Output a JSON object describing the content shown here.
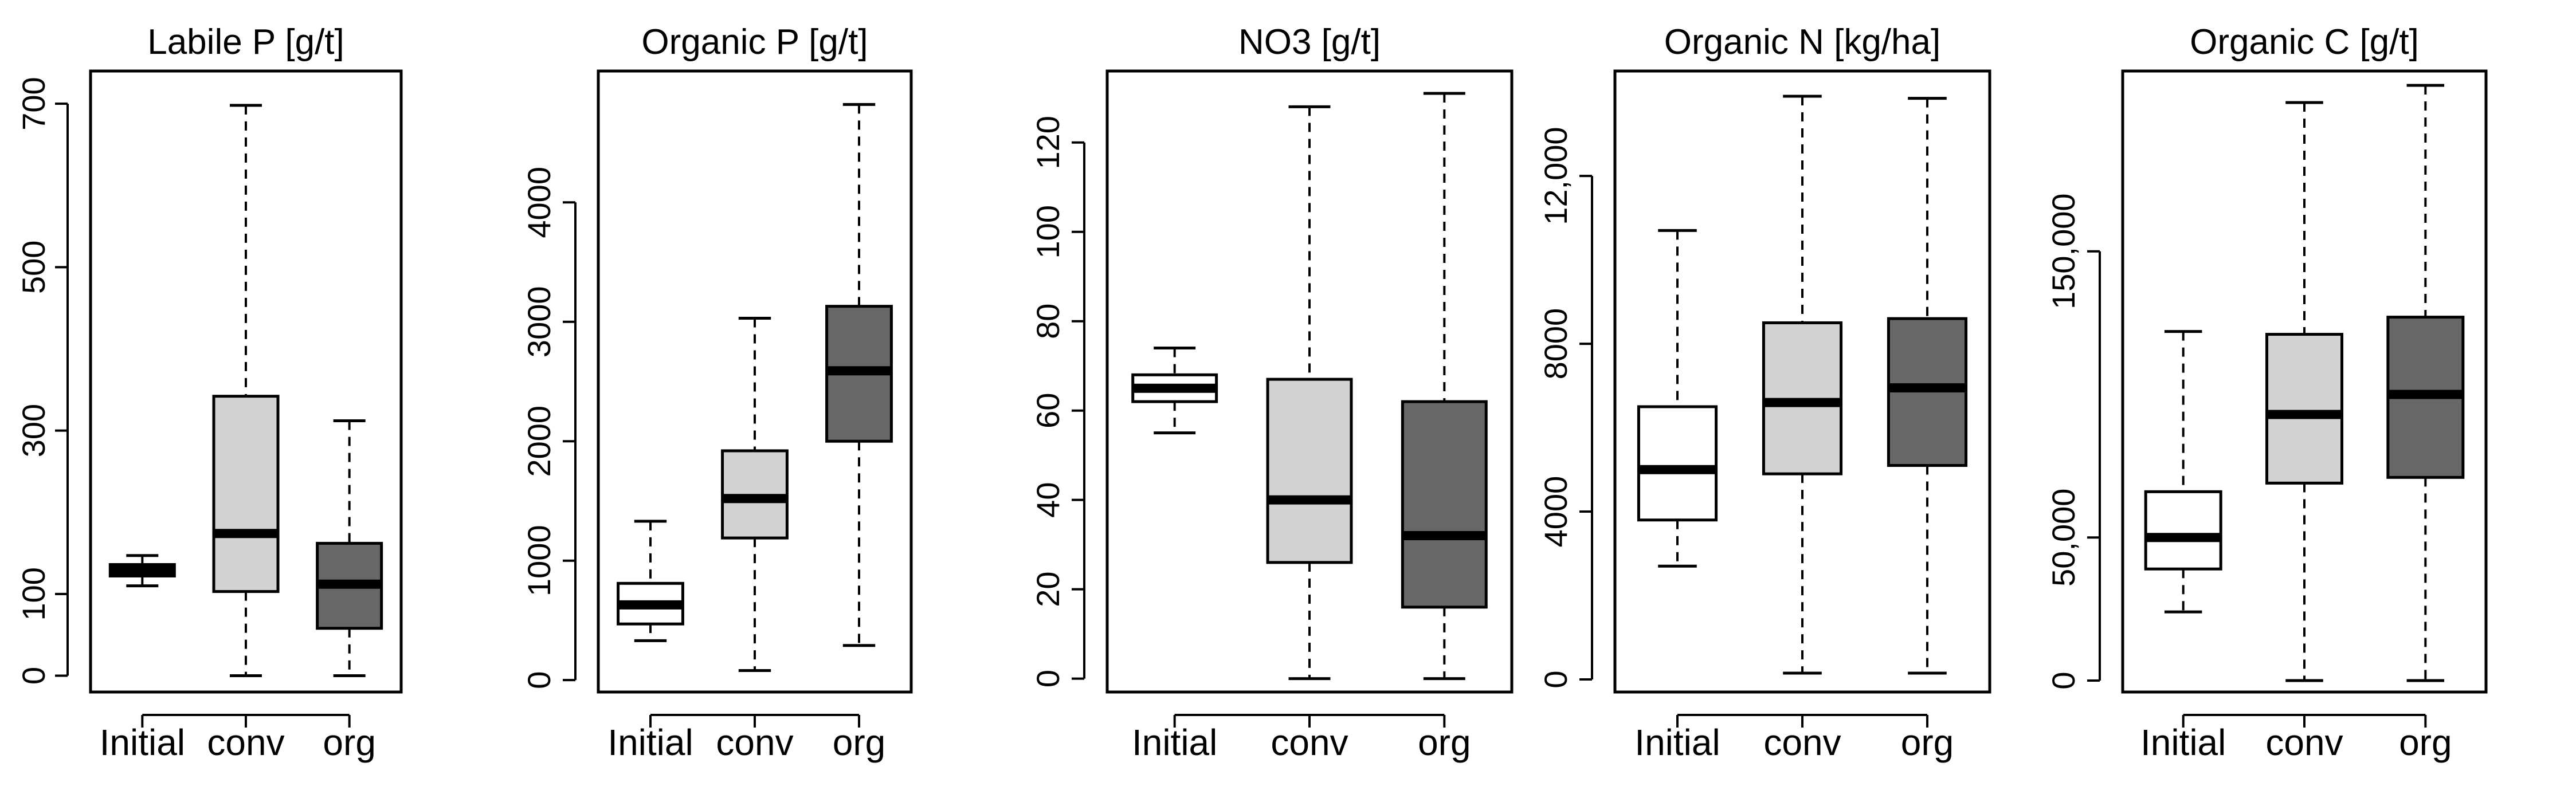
{
  "colors": {
    "Initial": "#ffffff",
    "conv": "#d3d3d3",
    "org": "#676767",
    "line": "#000000"
  },
  "chart_data": [
    {
      "type": "box",
      "title": "Labile P [g/t]",
      "xlabel": "",
      "ylabel": "",
      "ylim": [
        -20,
        740
      ],
      "yticks": [
        0,
        100,
        300,
        500,
        700
      ],
      "ytick_labels": [
        "0",
        "100",
        "300",
        "500",
        "700"
      ],
      "categories": [
        "Initial",
        "conv",
        "org"
      ],
      "boxes": [
        {
          "name": "Initial",
          "min": 110,
          "q1": 122,
          "median": 129,
          "q3": 136,
          "max": 147
        },
        {
          "name": "conv",
          "min": 0,
          "q1": 103,
          "median": 174,
          "q3": 342,
          "max": 698
        },
        {
          "name": "org",
          "min": 0,
          "q1": 58,
          "median": 112,
          "q3": 162,
          "max": 312
        }
      ]
    },
    {
      "type": "box",
      "title": "Organic P [g/t]",
      "xlabel": "",
      "ylabel": "",
      "ylim": [
        -100,
        5100
      ],
      "yticks": [
        0,
        1000,
        2000,
        3000,
        4000
      ],
      "ytick_labels": [
        "0",
        "1000",
        "2000",
        "3000",
        "4000"
      ],
      "categories": [
        "Initial",
        "conv",
        "org"
      ],
      "boxes": [
        {
          "name": "Initial",
          "min": 330,
          "q1": 470,
          "median": 630,
          "q3": 810,
          "max": 1330
        },
        {
          "name": "conv",
          "min": 80,
          "q1": 1190,
          "median": 1520,
          "q3": 1920,
          "max": 3030
        },
        {
          "name": "org",
          "min": 290,
          "q1": 2000,
          "median": 2590,
          "q3": 3130,
          "max": 4820
        }
      ]
    },
    {
      "type": "box",
      "title": "NO3 [g/t]",
      "xlabel": "",
      "ylabel": "",
      "ylim": [
        -3,
        136
      ],
      "yticks": [
        0,
        20,
        40,
        60,
        80,
        100,
        120
      ],
      "ytick_labels": [
        "0",
        "20",
        "40",
        "60",
        "80",
        "100",
        "120"
      ],
      "categories": [
        "Initial",
        "conv",
        "org"
      ],
      "boxes": [
        {
          "name": "Initial",
          "min": 55,
          "q1": 62,
          "median": 65,
          "q3": 68,
          "max": 74
        },
        {
          "name": "conv",
          "min": 0,
          "q1": 26,
          "median": 40,
          "q3": 67,
          "max": 128
        },
        {
          "name": "org",
          "min": 0,
          "q1": 16,
          "median": 32,
          "q3": 62,
          "max": 131
        }
      ]
    },
    {
      "type": "box",
      "title": "Organic N [kg/ha]",
      "xlabel": "",
      "ylabel": "",
      "ylim": [
        -300,
        14500
      ],
      "yticks": [
        0,
        4000,
        8000,
        12000
      ],
      "ytick_labels": [
        "0",
        "4000",
        "8000",
        "12,000"
      ],
      "categories": [
        "Initial",
        "conv",
        "org"
      ],
      "boxes": [
        {
          "name": "Initial",
          "min": 2700,
          "q1": 3800,
          "median": 5000,
          "q3": 6500,
          "max": 10700
        },
        {
          "name": "conv",
          "min": 150,
          "q1": 4900,
          "median": 6600,
          "q3": 8500,
          "max": 13900
        },
        {
          "name": "org",
          "min": 150,
          "q1": 5100,
          "median": 6950,
          "q3": 8600,
          "max": 13850
        }
      ]
    },
    {
      "type": "box",
      "title": "Organic C [g/t]",
      "xlabel": "",
      "ylabel": "",
      "ylim": [
        -4000,
        213000
      ],
      "yticks": [
        0,
        50000,
        150000
      ],
      "ytick_labels": [
        "0",
        "50,000",
        "150,000"
      ],
      "categories": [
        "Initial",
        "conv",
        "org"
      ],
      "boxes": [
        {
          "name": "Initial",
          "min": 24000,
          "q1": 39000,
          "median": 50000,
          "q3": 66000,
          "max": 122000
        },
        {
          "name": "conv",
          "min": 0,
          "q1": 69000,
          "median": 93000,
          "q3": 121000,
          "max": 202000
        },
        {
          "name": "org",
          "min": 0,
          "q1": 71000,
          "median": 100000,
          "q3": 127000,
          "max": 208000
        }
      ]
    }
  ]
}
